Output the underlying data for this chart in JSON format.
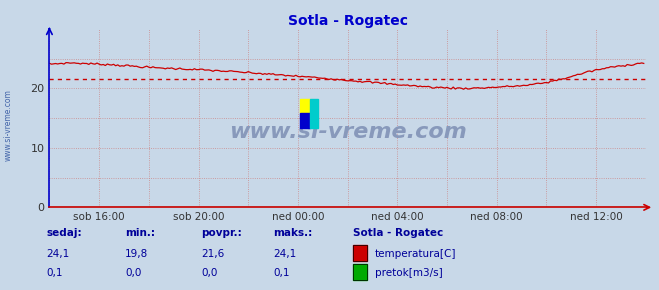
{
  "title": "Sotla - Rogatec",
  "title_color": "#0000cc",
  "bg_color": "#c8d8e8",
  "plot_bg_color": "#c8d8e8",
  "grid_color_h": "#cc8888",
  "grid_color_v": "#cc8888",
  "axis_color": "#0000cc",
  "xlim": [
    0,
    288
  ],
  "ylim": [
    0,
    30
  ],
  "yticks": [
    0,
    10,
    20
  ],
  "ytick_color": "#333333",
  "xtick_labels": [
    "sob 16:00",
    "sob 20:00",
    "ned 00:00",
    "ned 04:00",
    "ned 08:00",
    "ned 12:00"
  ],
  "xtick_positions": [
    24,
    72,
    120,
    168,
    216,
    264
  ],
  "temp_avg": 21.6,
  "temp_color": "#cc0000",
  "pretok_color": "#00aa00",
  "watermark_text": "www.si-vreme.com",
  "watermark_color": "#8899bb",
  "sidebar_text": "www.si-vreme.com",
  "sidebar_color": "#4466aa",
  "legend_title": "Sotla - Rogatec",
  "legend_title_color": "#000099",
  "legend_items": [
    {
      "label": "temperatura[C]",
      "color": "#cc0000"
    },
    {
      "label": "pretok[m3/s]",
      "color": "#00aa00"
    }
  ],
  "footer_labels": [
    "sedaj:",
    "min.:",
    "povpr.:",
    "maks.:"
  ],
  "footer_values_temp": [
    "24,1",
    "19,8",
    "21,6",
    "24,1"
  ],
  "footer_values_pretok": [
    "0,1",
    "0,0",
    "0,0",
    "0,1"
  ],
  "footer_color": "#000099",
  "arrow_color": "#cc0000",
  "arrow_color_y": "#0000cc"
}
